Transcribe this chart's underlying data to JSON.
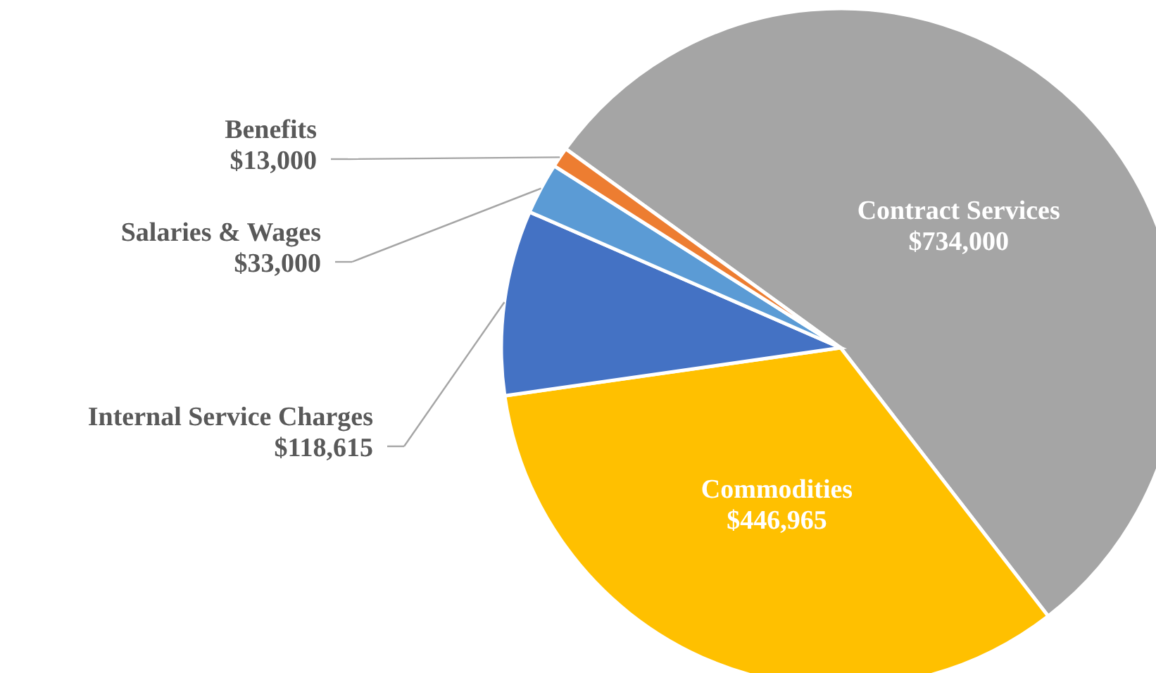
{
  "chart_data": {
    "type": "pie",
    "categories": [
      "Contract Services",
      "Commodities",
      "Internal Service Charges",
      "Salaries & Wages",
      "Benefits"
    ],
    "values": [
      734000,
      446965,
      118615,
      33000,
      13000
    ],
    "colors": [
      "#a5a5a5",
      "#ffc000",
      "#4472c4",
      "#5b9bd5",
      "#ed7d31"
    ],
    "value_labels": [
      "$734,000",
      "$446,965",
      "$118,615",
      "$33,000",
      "$13,000"
    ]
  }
}
